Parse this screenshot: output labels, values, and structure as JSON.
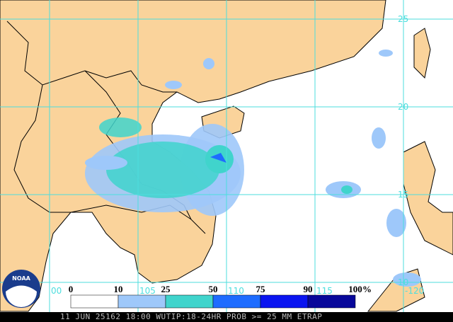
{
  "grid": {
    "lat_labels": [
      "25",
      "20",
      "15",
      "10"
    ],
    "lon_labels": [
      "00",
      "105",
      "110",
      "115",
      "-120"
    ]
  },
  "legend": {
    "labels": [
      "0",
      "10",
      "25",
      "50",
      "75",
      "90",
      "100"
    ],
    "unit": "%",
    "colors": [
      "#ffffff",
      "#9ec8fa",
      "#40d4cc",
      "#1e6cff",
      "#0a14f0",
      "#08089a"
    ]
  },
  "logo": "NOAA",
  "footer": "11 JUN 25162 18:00 WUTIP:18-24HR PROB >= 25 MM ETRAP"
}
